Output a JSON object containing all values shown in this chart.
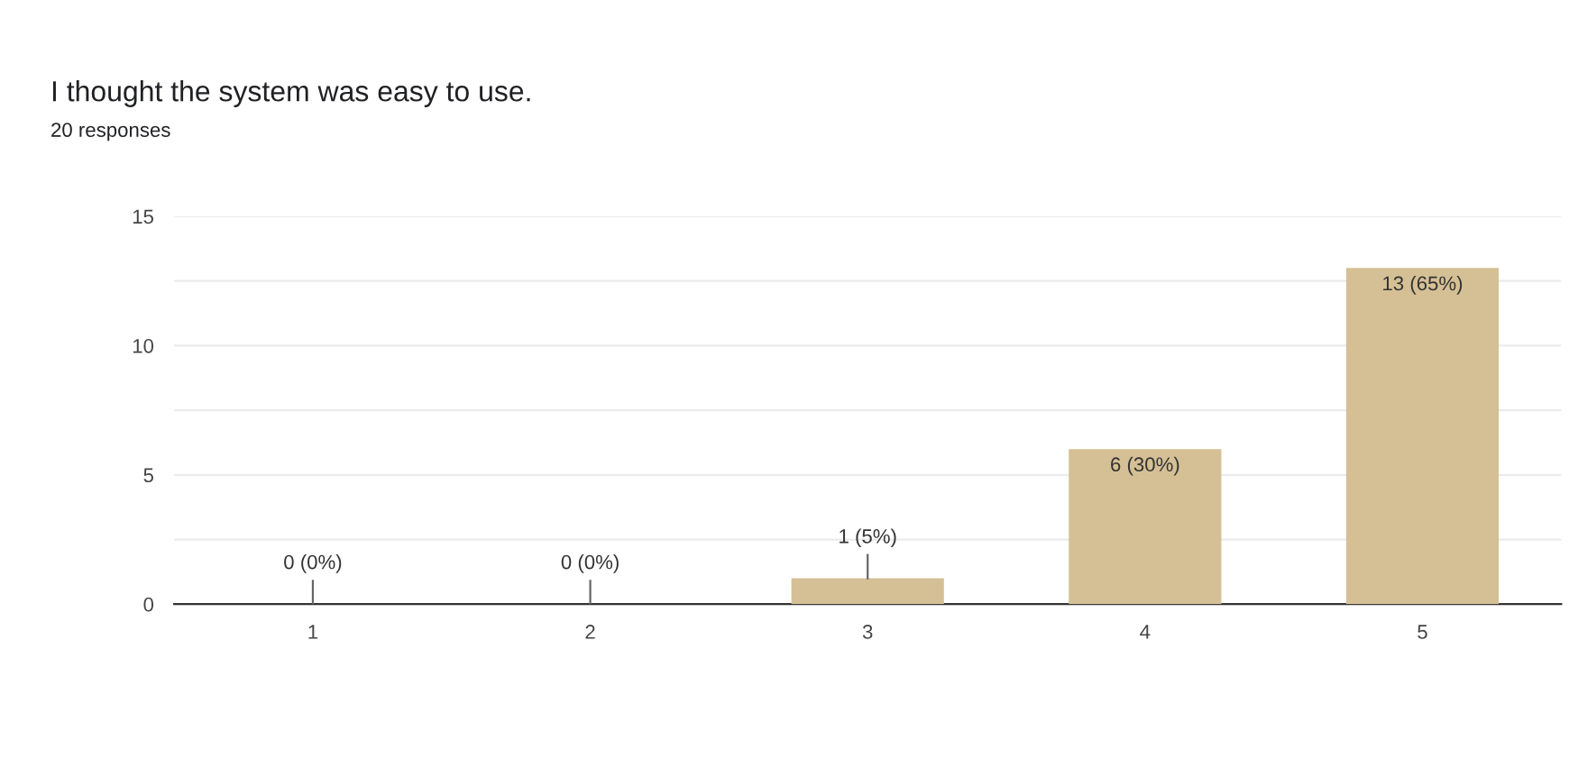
{
  "chart_data": {
    "type": "bar",
    "title": "I thought the system was easy to use.",
    "subtitle": "20 responses",
    "categories": [
      "1",
      "2",
      "3",
      "4",
      "5"
    ],
    "values": [
      0,
      0,
      1,
      6,
      13
    ],
    "color": "#d5c095",
    "value_labels": [
      "0 (0%)",
      "0 (0%)",
      "1 (5%)",
      "6 (30%)",
      "13 (65%)"
    ],
    "ylim": [
      0,
      15
    ],
    "yticks": [
      0,
      {
        "value": 2.5,
        "label": null
      },
      5,
      {
        "value": 7.5,
        "label": null
      },
      10,
      {
        "value": 12.5,
        "label": null
      },
      15
    ],
    "grid": "y"
  }
}
